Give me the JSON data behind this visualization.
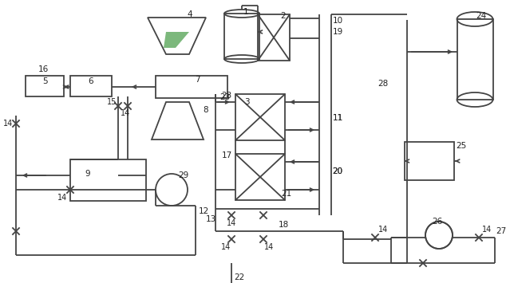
{
  "bg": "#ffffff",
  "lc": "#444444",
  "lw": 1.3,
  "figw": 6.39,
  "figh": 3.55,
  "dpi": 100
}
